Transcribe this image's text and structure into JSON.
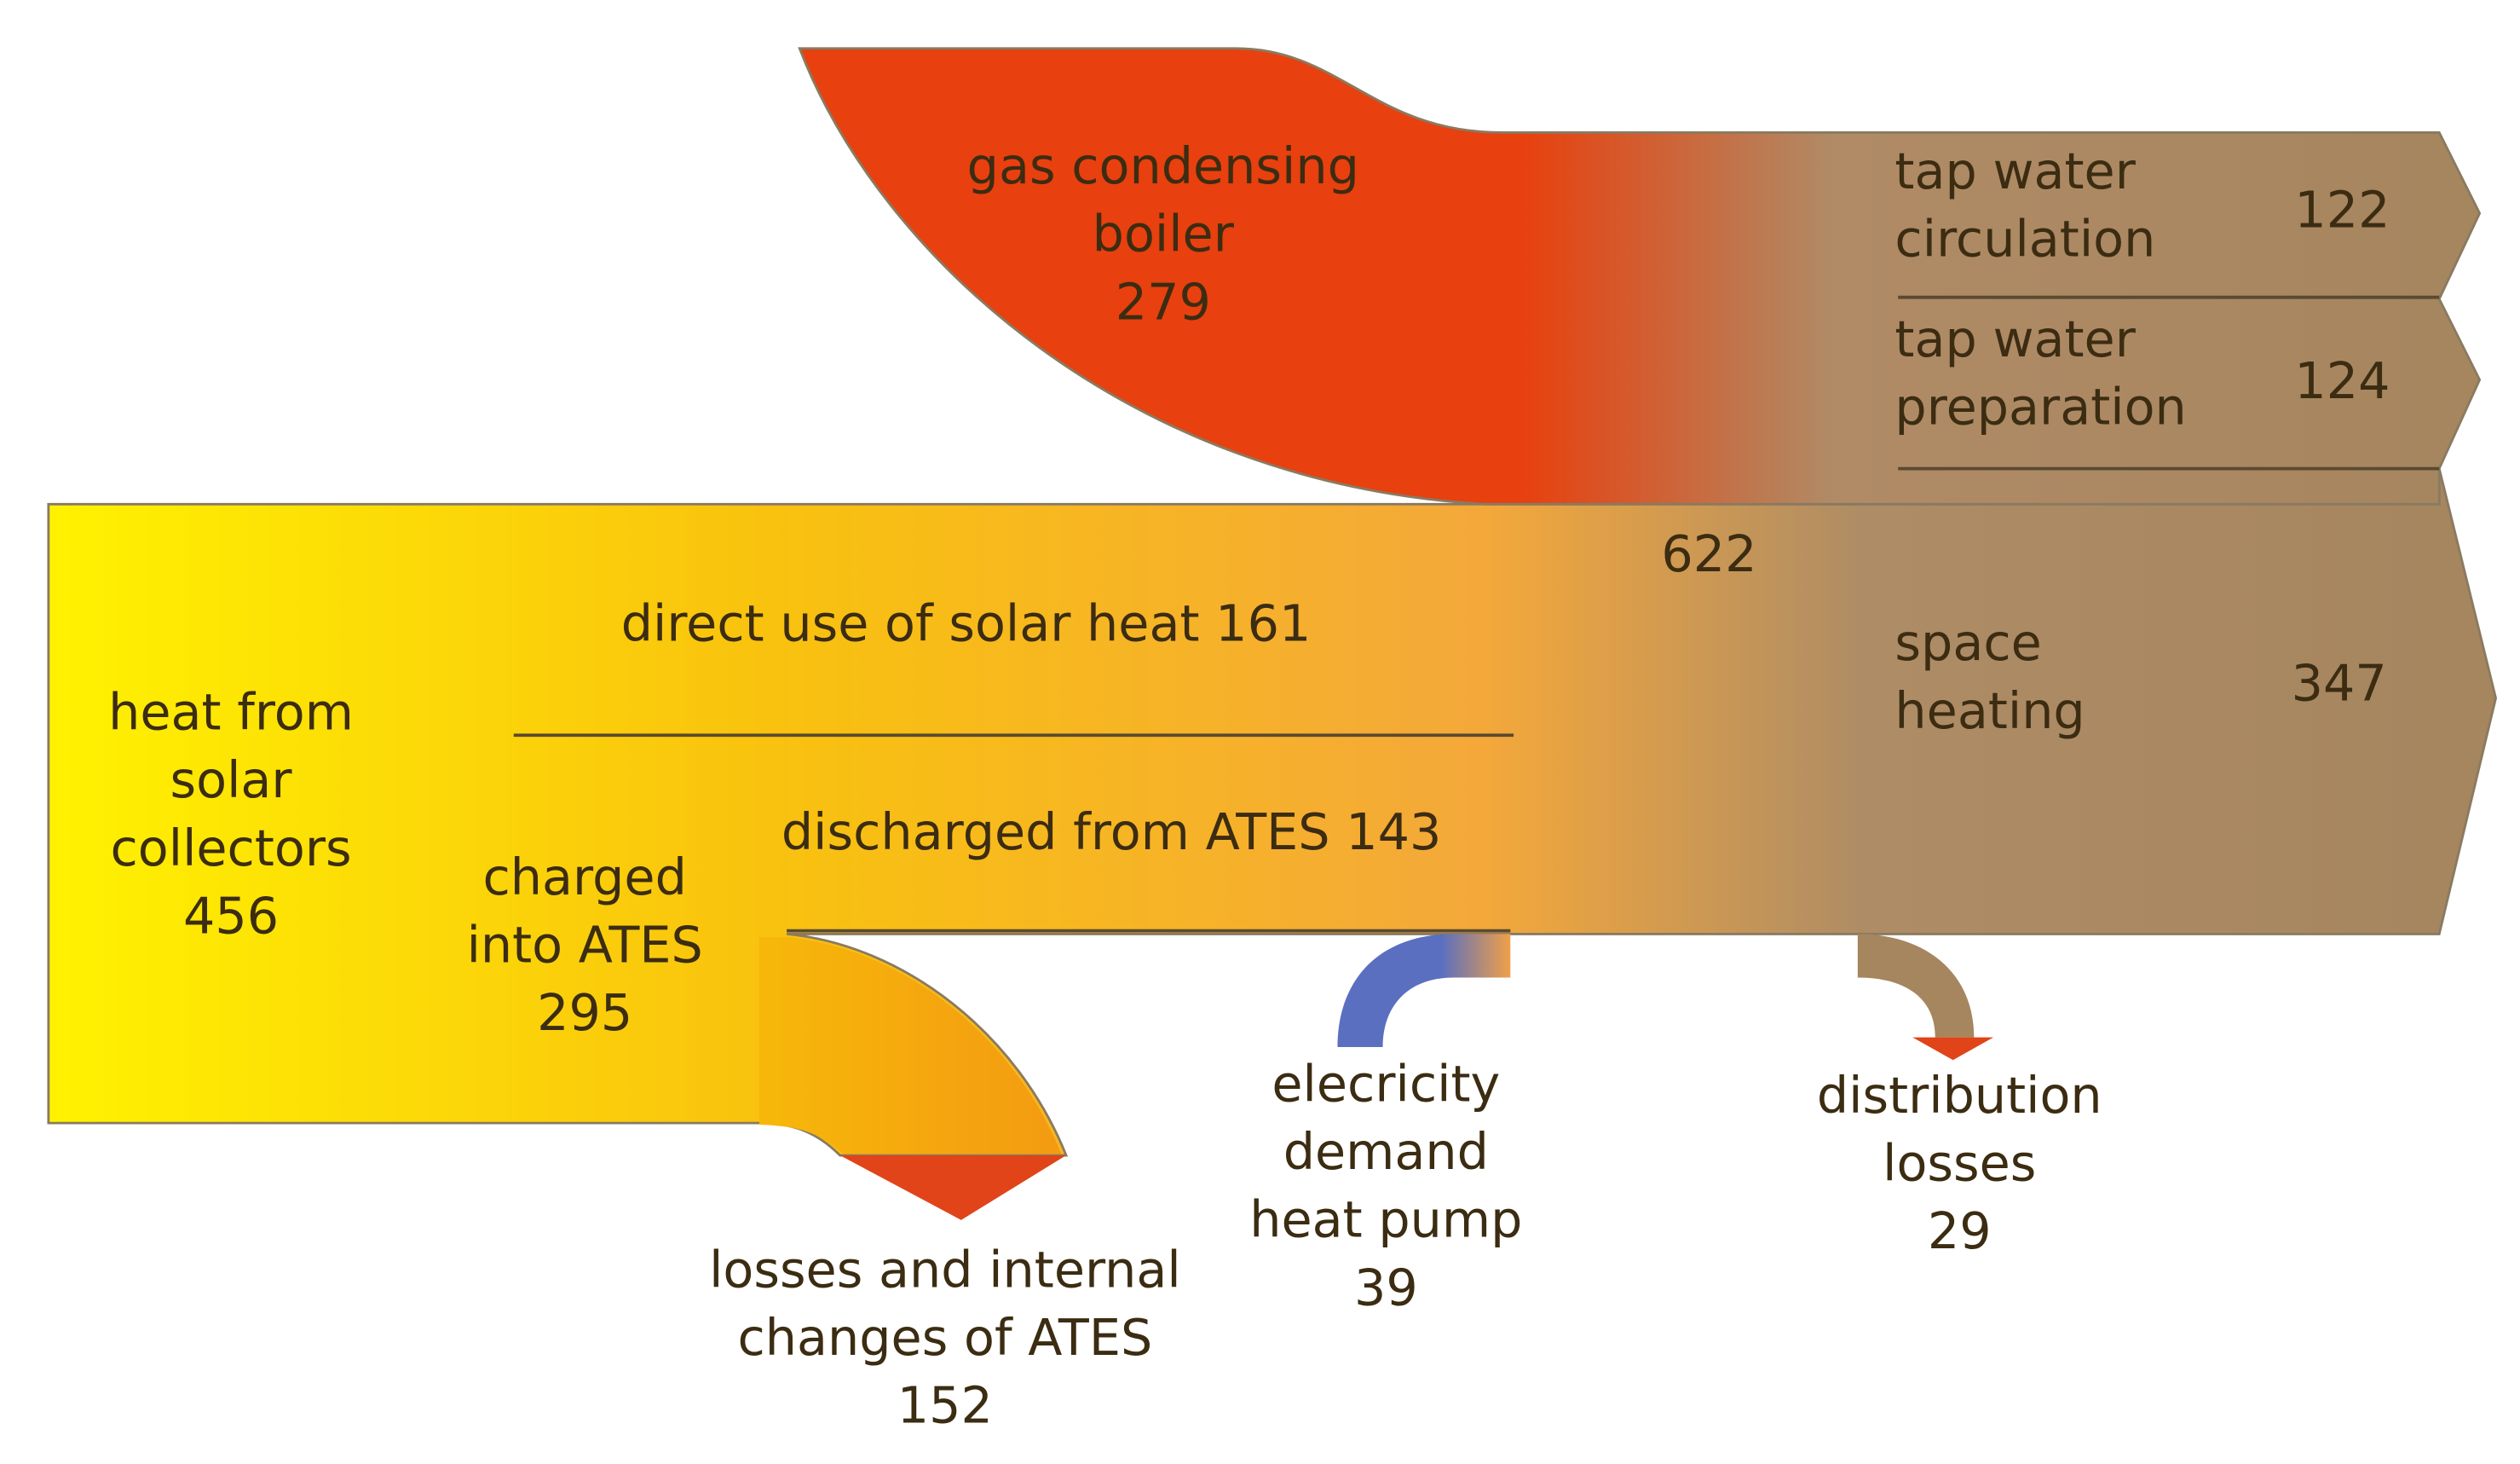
{
  "flows": [
    {
      "label": [
        "gas condensing",
        "boiler"
      ],
      "value": 279
    },
    {
      "label": [
        "tap water",
        "circulation"
      ],
      "value": 122
    },
    {
      "label": [
        "tap water",
        "preparation"
      ],
      "value": 124
    },
    {
      "label": [],
      "value": 622
    },
    {
      "label": [
        "direct use of solar heat"
      ],
      "value": 161
    },
    {
      "label": [
        "space",
        "heating"
      ],
      "value": 347
    },
    {
      "label": [
        "heat from",
        "solar",
        "collectors"
      ],
      "value": 456
    },
    {
      "label": [
        "charged",
        "into ATES"
      ],
      "value": 295
    },
    {
      "label": [
        "discharged from ATES"
      ],
      "value": 143
    },
    {
      "label": [
        "elecricity",
        "demand",
        "heat pump"
      ],
      "value": 39
    },
    {
      "label": [
        "distribution",
        "losses"
      ],
      "value": 29
    },
    {
      "label": [
        "losses and internal",
        "changes of ATES"
      ],
      "value": 152
    }
  ]
}
